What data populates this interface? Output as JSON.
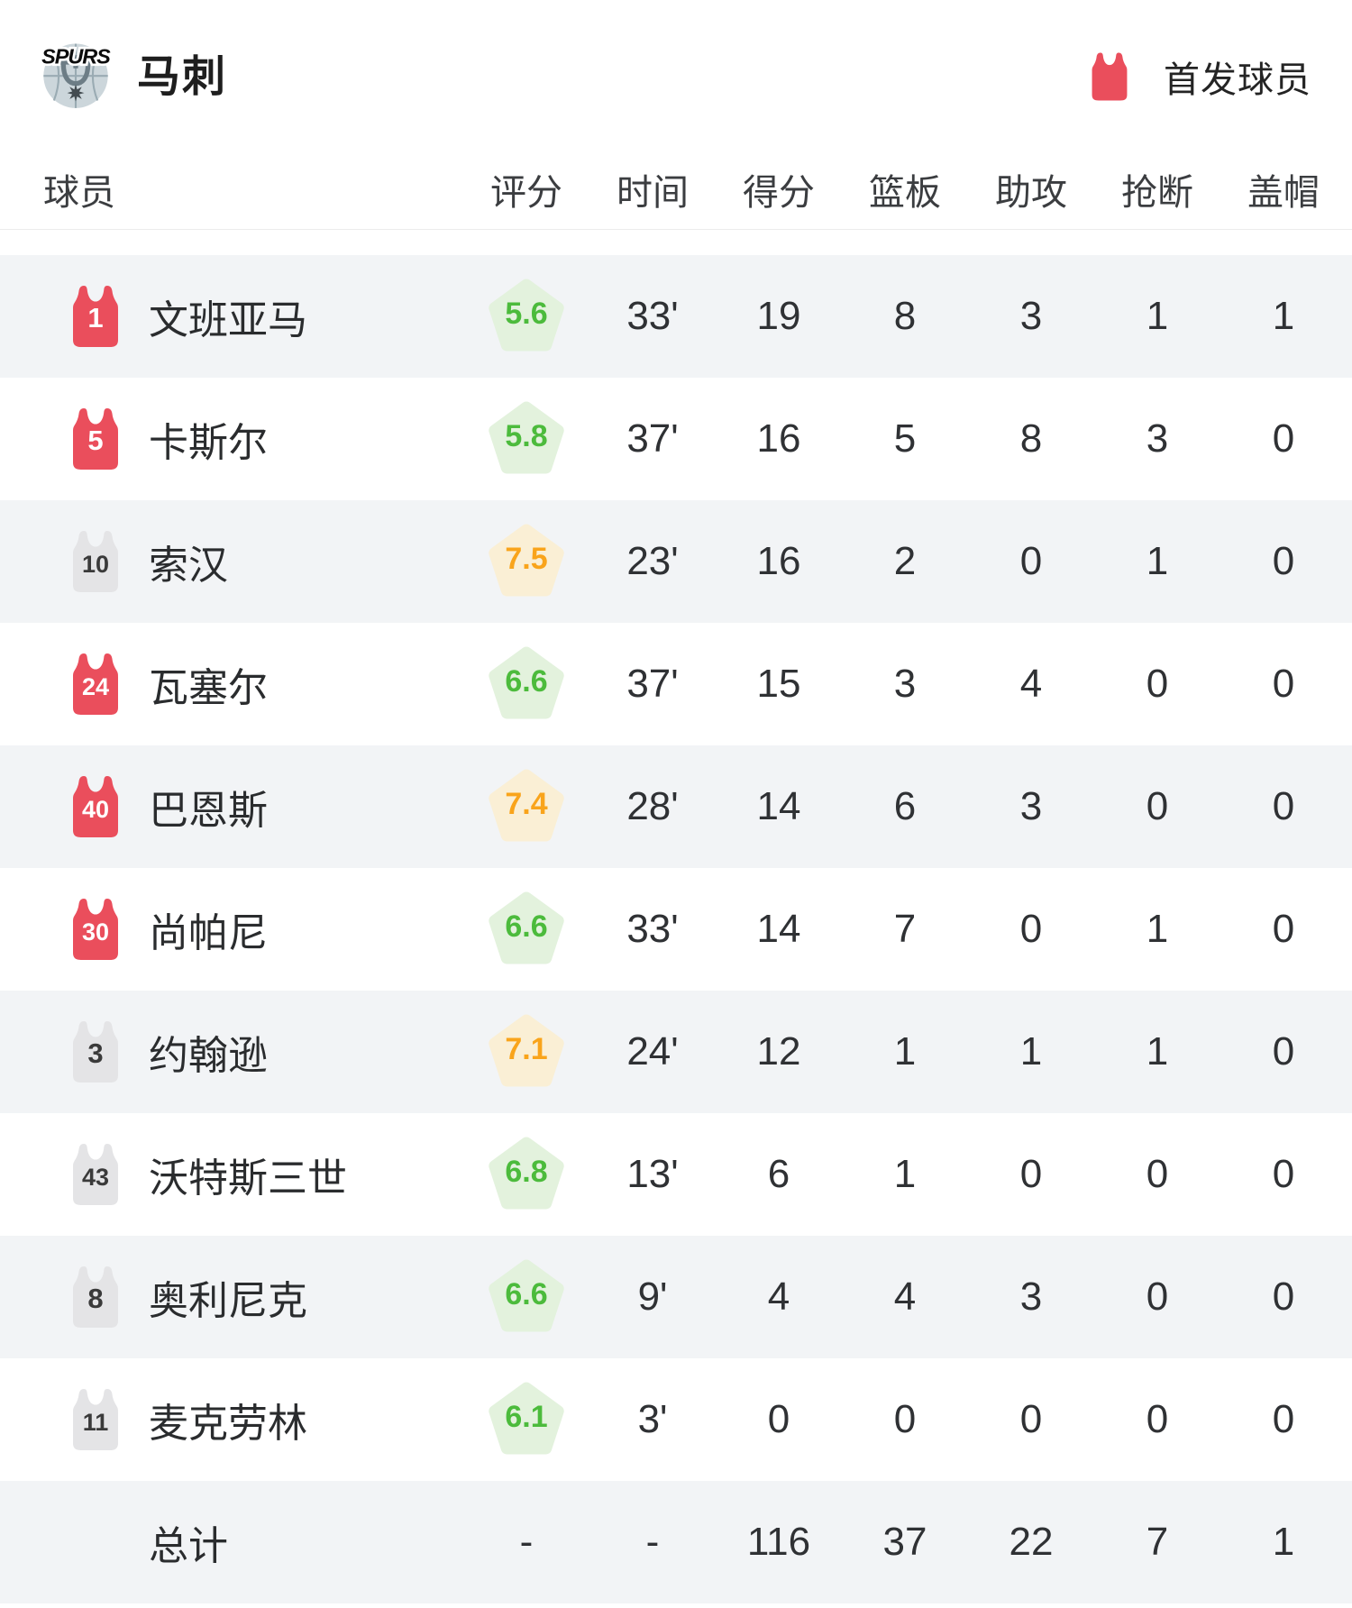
{
  "header": {
    "team_name": "马刺",
    "logo_text": "SPURS",
    "legend_label": "首发球员"
  },
  "table": {
    "columns": [
      "球员",
      "评分",
      "时间",
      "得分",
      "篮板",
      "助攻",
      "抢断",
      "盖帽"
    ],
    "rows": [
      {
        "number": "1",
        "starter": true,
        "name": "文班亚马",
        "rating": "5.6",
        "time": "33'",
        "points": "19",
        "rebounds": "8",
        "assists": "3",
        "steals": "1",
        "blocks": "1"
      },
      {
        "number": "5",
        "starter": true,
        "name": "卡斯尔",
        "rating": "5.8",
        "time": "37'",
        "points": "16",
        "rebounds": "5",
        "assists": "8",
        "steals": "3",
        "blocks": "0"
      },
      {
        "number": "10",
        "starter": false,
        "name": "索汉",
        "rating": "7.5",
        "time": "23'",
        "points": "16",
        "rebounds": "2",
        "assists": "0",
        "steals": "1",
        "blocks": "0"
      },
      {
        "number": "24",
        "starter": true,
        "name": "瓦塞尔",
        "rating": "6.6",
        "time": "37'",
        "points": "15",
        "rebounds": "3",
        "assists": "4",
        "steals": "0",
        "blocks": "0"
      },
      {
        "number": "40",
        "starter": true,
        "name": "巴恩斯",
        "rating": "7.4",
        "time": "28'",
        "points": "14",
        "rebounds": "6",
        "assists": "3",
        "steals": "0",
        "blocks": "0"
      },
      {
        "number": "30",
        "starter": true,
        "name": "尚帕尼",
        "rating": "6.6",
        "time": "33'",
        "points": "14",
        "rebounds": "7",
        "assists": "0",
        "steals": "1",
        "blocks": "0"
      },
      {
        "number": "3",
        "starter": false,
        "name": "约翰逊",
        "rating": "7.1",
        "time": "24'",
        "points": "12",
        "rebounds": "1",
        "assists": "1",
        "steals": "1",
        "blocks": "0"
      },
      {
        "number": "43",
        "starter": false,
        "name": "沃特斯三世",
        "rating": "6.8",
        "time": "13'",
        "points": "6",
        "rebounds": "1",
        "assists": "0",
        "steals": "0",
        "blocks": "0"
      },
      {
        "number": "8",
        "starter": false,
        "name": "奥利尼克",
        "rating": "6.6",
        "time": "9'",
        "points": "4",
        "rebounds": "4",
        "assists": "3",
        "steals": "0",
        "blocks": "0"
      },
      {
        "number": "11",
        "starter": false,
        "name": "麦克劳林",
        "rating": "6.1",
        "time": "3'",
        "points": "0",
        "rebounds": "0",
        "assists": "0",
        "steals": "0",
        "blocks": "0"
      }
    ],
    "total": {
      "label": "总计",
      "rating": "-",
      "time": "-",
      "points": "116",
      "rebounds": "37",
      "assists": "22",
      "steals": "7",
      "blocks": "1"
    }
  },
  "colors": {
    "starter_red": "#ea4e5c",
    "bench_gray": "#e4e4e6",
    "bench_number": "#3a3a3a",
    "rating_green_text": "#4cbb3c",
    "rating_green_bg": "#e3f2dd",
    "rating_orange_text": "#f9a41b",
    "rating_orange_bg": "#faefd5",
    "row_alt_bg": "#f2f4f6"
  }
}
